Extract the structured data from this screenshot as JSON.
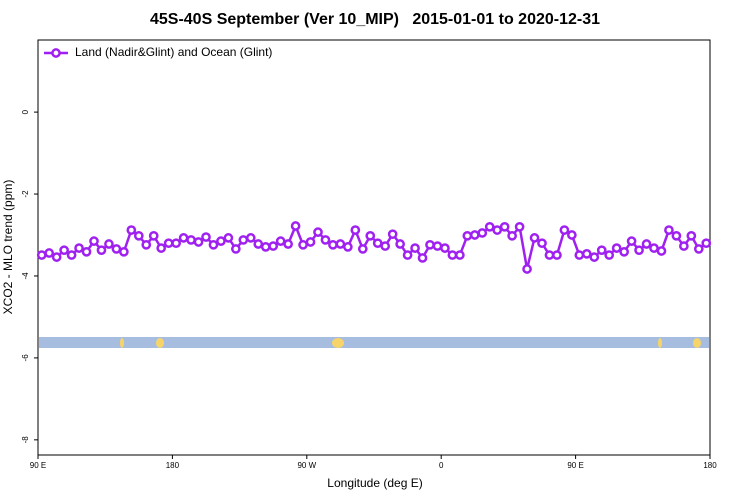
{
  "chart_data": {
    "type": "line",
    "title": "45S-40S September (Ver 10_MIP)   2015-01-01 to 2020-12-31",
    "x_label": "Longitude (deg E)",
    "y_label": "XCO2 - MLO trend (ppm)",
    "xlim": [
      90,
      540
    ],
    "ylim": [
      -8.37,
      1.76
    ],
    "xticks": [
      {
        "value": 90,
        "label": "90 E"
      },
      180,
      {
        "value": 270,
        "label": "90 W"
      },
      {
        "value": 360,
        "label": "0"
      },
      {
        "value": 450,
        "label": "90 E"
      },
      {
        "value": 540,
        "label": "180"
      }
    ],
    "yticks": [
      0,
      -2,
      -4,
      -6,
      -8
    ],
    "legend_position": "top-left",
    "x": [
      92.5,
      97.5,
      102.5,
      107.5,
      112.5,
      117.5,
      122.5,
      127.5,
      132.5,
      137.5,
      142.5,
      147.5,
      152.5,
      157.5,
      162.5,
      167.5,
      172.5,
      177.5,
      182.5,
      187.5,
      192.5,
      197.5,
      202.5,
      207.5,
      212.5,
      217.5,
      222.5,
      227.5,
      232.5,
      237.5,
      242.5,
      247.5,
      252.5,
      257.5,
      262.5,
      267.5,
      272.5,
      277.5,
      282.5,
      287.5,
      292.5,
      297.5,
      302.5,
      307.5,
      312.5,
      317.5,
      322.5,
      327.5,
      332.5,
      337.5,
      342.5,
      347.5,
      352.5,
      357.5,
      362.5,
      367.5,
      372.5,
      377.5,
      382.5,
      387.5,
      392.5,
      397.5,
      402.5,
      407.5,
      412.5,
      417.5,
      422.5,
      427.5,
      432.5,
      437.5,
      442.5,
      447.5,
      452.5,
      457.5,
      462.5,
      467.5,
      472.5,
      477.5,
      482.5,
      487.5,
      492.5,
      497.5,
      502.5,
      507.5,
      512.5,
      517.5,
      522.5,
      527.5,
      532.5,
      537.5
    ],
    "series": [
      {
        "name": "Land (Nadir&Glint) and Ocean (Glint)",
        "color": "#a020f0",
        "values": [
          -3.49,
          -3.44,
          -3.54,
          -3.37,
          -3.49,
          -3.32,
          -3.41,
          -3.15,
          -3.37,
          -3.22,
          -3.34,
          -3.41,
          -2.88,
          -3.02,
          -3.24,
          -3.02,
          -3.32,
          -3.2,
          -3.2,
          -3.07,
          -3.12,
          -3.17,
          -3.05,
          -3.24,
          -3.15,
          -3.07,
          -3.34,
          -3.12,
          -3.07,
          -3.22,
          -3.29,
          -3.27,
          -3.15,
          -3.22,
          -2.78,
          -3.24,
          -3.17,
          -2.93,
          -3.12,
          -3.24,
          -3.22,
          -3.29,
          -2.88,
          -3.34,
          -3.02,
          -3.2,
          -3.27,
          -2.98,
          -3.22,
          -3.49,
          -3.32,
          -3.56,
          -3.24,
          -3.27,
          -3.32,
          -3.49,
          -3.49,
          -3.02,
          -3.0,
          -2.95,
          -2.8,
          -2.88,
          -2.8,
          -3.02,
          -2.8,
          -3.83,
          -3.07,
          -3.2,
          -3.49,
          -3.49,
          -2.88,
          -3.0,
          -3.49,
          -3.46,
          -3.54,
          -3.37,
          -3.49,
          -3.32,
          -3.41,
          -3.15,
          -3.37,
          -3.22,
          -3.32,
          -3.39,
          -2.88,
          -3.02,
          -3.27,
          -3.02,
          -3.34,
          -3.2
        ]
      }
    ]
  }
}
